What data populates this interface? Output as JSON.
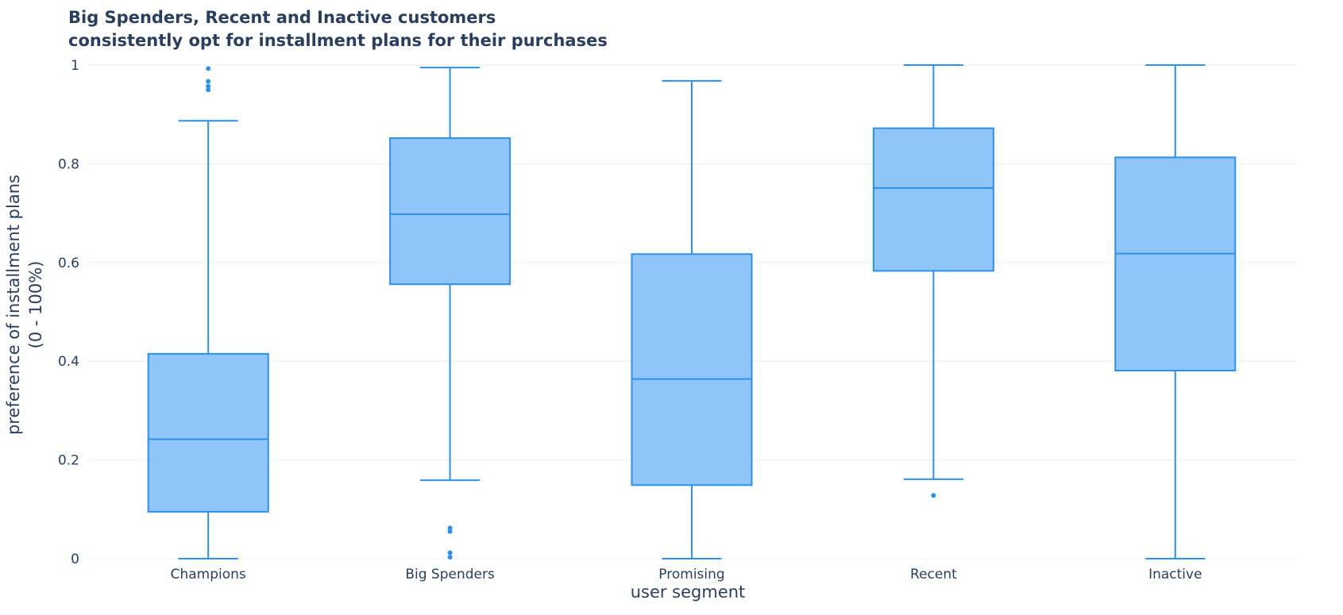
{
  "chart_data": {
    "type": "box",
    "title": [
      "Big Spenders, Recent and Inactive customers",
      "consistently opt for installment plans for their purchases"
    ],
    "xlabel": "user segment",
    "ylabel": [
      "preference of installment plans",
      "(0 - 100%)"
    ],
    "ylim": [
      0,
      1
    ],
    "yticks": [
      0,
      0.2,
      0.4,
      0.6,
      0.8,
      1
    ],
    "ytick_labels": [
      "0",
      "0.2",
      "0.4",
      "0.6",
      "0.8",
      "1"
    ],
    "grid": true,
    "color": "#2c91ec",
    "fill_color": "#90c5fa",
    "categories": [
      "Champions",
      "Big Spenders",
      "Promising",
      "Recent",
      "Inactive"
    ],
    "boxes": [
      {
        "category": "Champions",
        "min": 0.0,
        "q1": 0.095,
        "median": 0.242,
        "q3": 0.415,
        "max": 0.887,
        "outliers": [
          0.95,
          0.957,
          0.967,
          0.993
        ]
      },
      {
        "category": "Big Spenders",
        "min": 0.159,
        "q1": 0.556,
        "median": 0.698,
        "q3": 0.852,
        "max": 0.995,
        "outliers": [
          0.003,
          0.012,
          0.055,
          0.062
        ]
      },
      {
        "category": "Promising",
        "min": 0.0,
        "q1": 0.149,
        "median": 0.364,
        "q3": 0.617,
        "max": 0.968,
        "outliers": []
      },
      {
        "category": "Recent",
        "min": 0.161,
        "q1": 0.583,
        "median": 0.751,
        "q3": 0.872,
        "max": 1.0,
        "outliers": [
          0.128
        ]
      },
      {
        "category": "Inactive",
        "min": 0.0,
        "q1": 0.381,
        "median": 0.618,
        "q3": 0.813,
        "max": 1.0,
        "outliers": []
      }
    ]
  }
}
